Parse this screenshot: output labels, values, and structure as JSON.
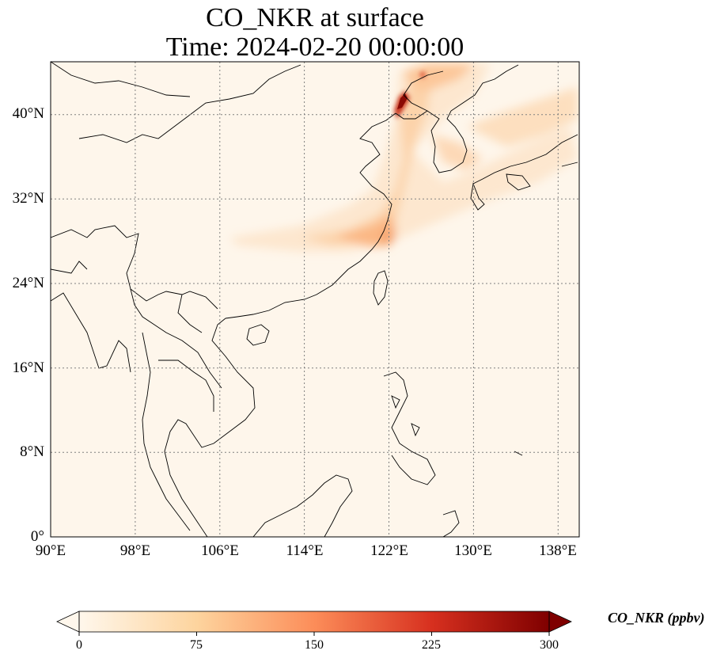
{
  "title": {
    "line1": "CO_NKR at surface",
    "line2": "Time: 2024-02-20 00:00:00"
  },
  "map": {
    "extent": {
      "lon_min": 90,
      "lon_max": 140,
      "lat_min": 0,
      "lat_max": 45
    },
    "gridlines": "dotted",
    "latitude_ticks": [
      "0°",
      "8°N",
      "16°N",
      "24°N",
      "32°N",
      "40°N"
    ],
    "longitude_ticks": [
      "90°E",
      "98°E",
      "106°E",
      "114°E",
      "122°E",
      "130°E",
      "138°E"
    ]
  },
  "colorbar": {
    "label": "CO_NKR (ppbv)",
    "ticks": [
      "0",
      "75",
      "150",
      "225",
      "300"
    ],
    "range": [
      0,
      300
    ],
    "colormap": "OrRd",
    "extend": "both",
    "colors": [
      "#fff7ec",
      "#fdd49e",
      "#fc8d59",
      "#d7301f",
      "#7f0000"
    ]
  },
  "colors": {
    "background_field": "#fef6eb",
    "coastline": "#000000",
    "grid": "#808080"
  }
}
